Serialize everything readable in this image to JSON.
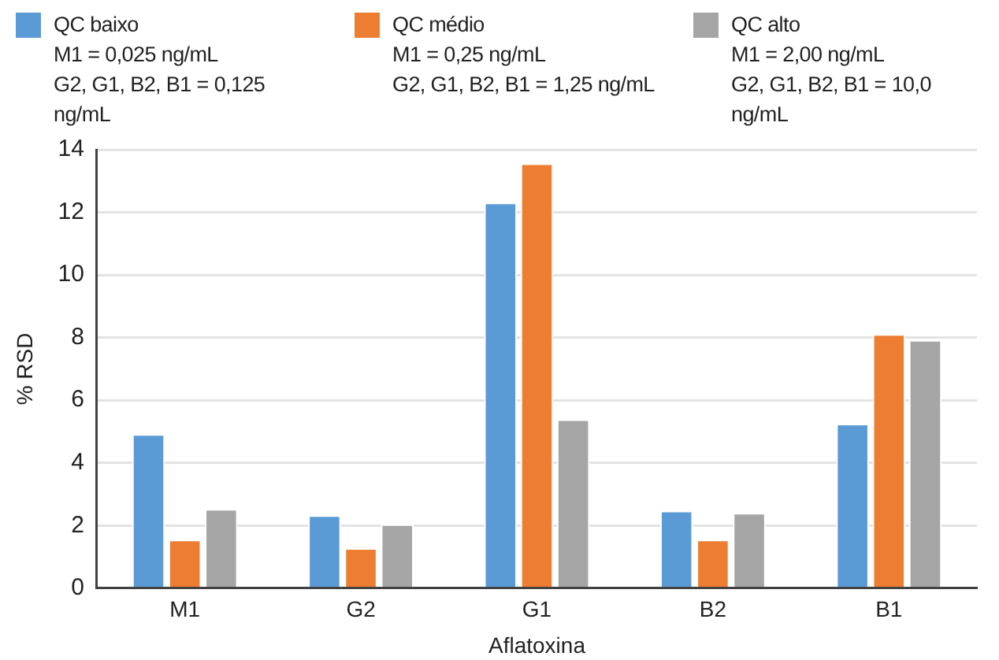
{
  "chart_data": {
    "type": "bar",
    "xlabel": "Aflatoxina",
    "ylabel": "% RSD",
    "categories": [
      "M1",
      "G2",
      "G1",
      "B2",
      "B1"
    ],
    "series": [
      {
        "name": "QC baixo\nM1 = 0,025 ng/mL\nG2, G1, B2, B1 = 0,125 ng/mL",
        "color": "#5b9bd5",
        "values": [
          4.92,
          2.33,
          12.31,
          2.47,
          5.25
        ]
      },
      {
        "name": "QC médio\nM1 = 0,25 ng/mL\nG2, G1, B2, B1 = 1,25 ng/mL",
        "color": "#ed7d31",
        "values": [
          1.55,
          1.28,
          13.56,
          1.55,
          8.11
        ]
      },
      {
        "name": "QC alto\nM1 = 2,00 ng/mL\nG2, G1, B2, B1 = 10,0 ng/mL",
        "color": "#a5a5a5",
        "values": [
          2.53,
          2.04,
          5.39,
          2.4,
          7.92
        ]
      }
    ],
    "ylim": [
      0,
      14
    ],
    "yticks": [
      0,
      2,
      4,
      6,
      8,
      10,
      12,
      14
    ],
    "grid": "y",
    "legend": "top"
  }
}
